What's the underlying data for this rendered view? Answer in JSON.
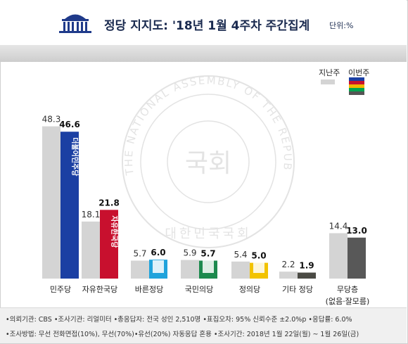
{
  "header": {
    "title": "정당 지지도: '18년 1월 4주차 주간집계",
    "unit": "단위:%"
  },
  "legend": {
    "prev_label": "지난주",
    "cur_label": "이번주",
    "cur_swatch_colors": [
      "#1b3fa3",
      "#c8102e",
      "#f2b700",
      "#00a44f",
      "#555555"
    ]
  },
  "chart_data": {
    "type": "bar",
    "categories": [
      "민주당",
      "자유한국당",
      "바른정당",
      "국민의당",
      "정의당",
      "기타 정당",
      "무당층"
    ],
    "category_sublabels": [
      "",
      "",
      "",
      "",
      "",
      "",
      "(없음·잘모름)"
    ],
    "series": [
      {
        "name": "지난주",
        "values": [
          48.3,
          18.1,
          5.7,
          5.9,
          5.4,
          2.2,
          14.4
        ],
        "color": "#d4d4d4"
      },
      {
        "name": "이번주",
        "values": [
          46.6,
          21.8,
          6.0,
          5.7,
          5.0,
          1.9,
          13.0
        ],
        "colors": [
          "#1b3fa3",
          "#c8102e",
          "#1fa3dc",
          "#1d8a4e",
          "#f2c300",
          "#4a4a44",
          "#585858"
        ]
      }
    ],
    "party_logo_text": [
      "더불어민주당",
      "자유한국당",
      "",
      "",
      "",
      "",
      ""
    ],
    "ylim": [
      0,
      50
    ],
    "grid": false,
    "legend_position": "top-right"
  },
  "footer": {
    "line1": "•의뢰기관: CBS •조사기관: 리얼미터 •총응답자: 전국 성인 2,510명 •표집오차: 95% 신뢰수준 ±2.0%p •응답률: 6.0%",
    "line2": "•조사방법: 무선 전화면접(10%), 무선(70%)•유선(20%) 자동응답 혼용 •조사기간: 2018년 1월 22일(월) ~ 1월 26일(금)"
  },
  "watermark": {
    "ring_text": "THE NATIONAL ASSEMBLY OF THE REPUBLIC OF KOREA",
    "center_text": "국회",
    "bottom_text": "대한민국국회"
  }
}
